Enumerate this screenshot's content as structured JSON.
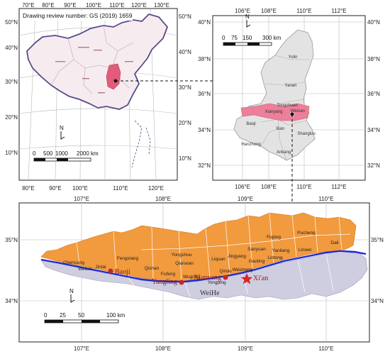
{
  "review_number": "Drawing review number: GS (2019) 1659",
  "panel_a": {
    "top_ticks": [
      "70°E",
      "80°E",
      "90°E",
      "100°E",
      "110°E",
      "120°E",
      "130°E"
    ],
    "bottom_ticks": [
      "80°E",
      "90°E",
      "100°E",
      "110°E",
      "120°E"
    ],
    "left_ticks": [
      "50°N",
      "40°N",
      "30°N",
      "20°N",
      "10°N"
    ],
    "right_ticks": [
      "50°N",
      "40°N",
      "30°N",
      "20°N",
      "10°N"
    ],
    "north": "N",
    "scale_labels": [
      "0",
      "500",
      "1000",
      "2000 km"
    ]
  },
  "panel_b": {
    "top_ticks": [
      "106°E",
      "108°E",
      "110°E",
      "112°E"
    ],
    "bottom_ticks": [
      "106°E",
      "108°E",
      "110°E",
      "112°E"
    ],
    "left_ticks": [
      "40°N",
      "38°N",
      "36°N",
      "34°N",
      "32°N"
    ],
    "right_ticks": [
      "40°N",
      "38°N",
      "36°N",
      "34°N",
      "32°N"
    ],
    "north": "N",
    "scale_labels": [
      "0",
      "75",
      "150",
      "300 km"
    ],
    "places": [
      "Yulin",
      "Yanan",
      "Tongchuan",
      "Weinan",
      "Xianyang",
      "Baoji",
      "Xian",
      "Shangluo",
      "Hanzhong",
      "Ankang"
    ]
  },
  "panel_c": {
    "top_ticks": [
      "107°E",
      "108°E",
      "109°E",
      "110°E"
    ],
    "bottom_ticks": [
      "107°E",
      "108°E",
      "109°E",
      "110°E"
    ],
    "left_ticks": [
      "35°N",
      "34°N"
    ],
    "right_ticks": [
      "35°N",
      "34°N"
    ],
    "north": "N",
    "scale_labels": [
      "0",
      "25",
      "50",
      "100 km"
    ],
    "counties": [
      "Pucheng",
      "Fuping",
      "Dali",
      "Linwei",
      "Yanliang",
      "Sanyuan",
      "Lintong",
      "Gaoling",
      "Jingyang",
      "Liquan",
      "Qianxian",
      "Yongshou",
      "Fengxiang",
      "Qishan",
      "Chencang",
      "Weibin",
      "Jintai",
      "Fufeng",
      "Wugong",
      "Qindu",
      "Weicheng",
      "Xingping"
    ],
    "cities": [
      "Baoji",
      "Yangling",
      "Xianyang",
      "Xi'an"
    ],
    "river": "WeiHe"
  },
  "colors": {
    "study_area": "#f19a3e",
    "south_area": "#cfcde0",
    "river": "#1d2bd6",
    "highlight": "#e86a8c",
    "province_fill": "#e3e3e3"
  }
}
